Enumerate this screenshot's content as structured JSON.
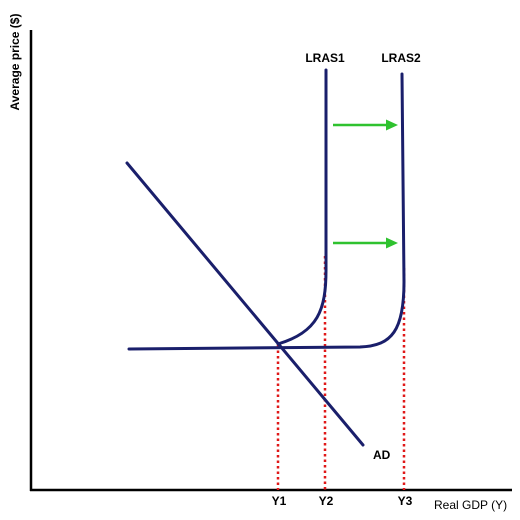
{
  "diagram": {
    "y_axis_label": "Average price ($)",
    "x_axis_label": "Real GDP (Y)",
    "curves": {
      "lras1": "LRAS1",
      "lras2": "LRAS2",
      "ad": "AD"
    },
    "ticks": [
      "Y1",
      "Y2",
      "Y3"
    ],
    "colors": {
      "curve": "#1a1f6b",
      "arrow": "#2fc22f",
      "dotted": "#e01818",
      "axis": "#000000"
    }
  }
}
